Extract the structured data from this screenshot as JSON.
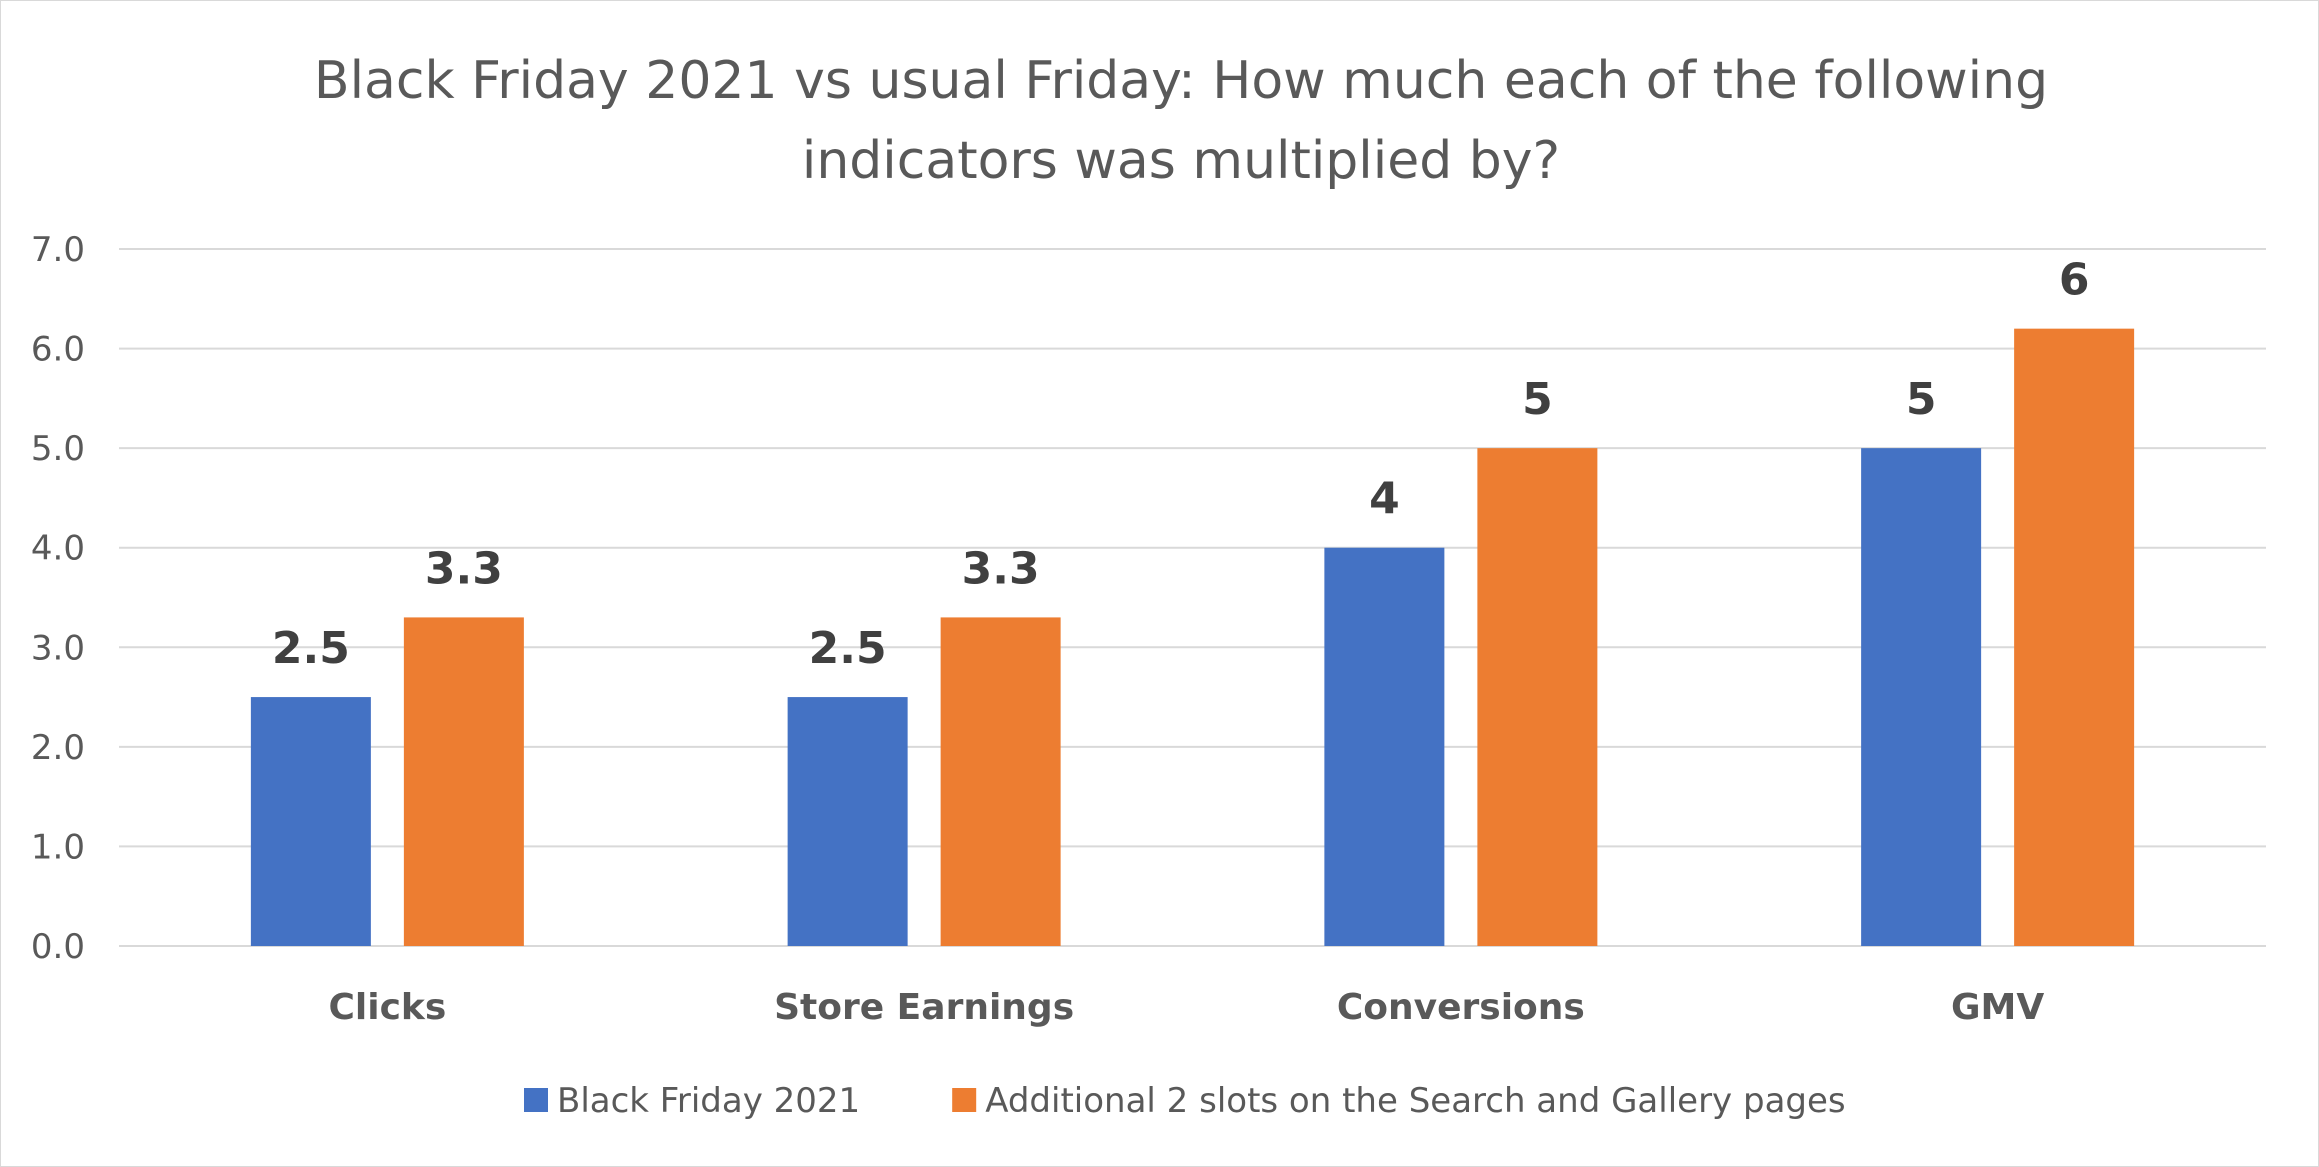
{
  "chart_data": {
    "type": "bar",
    "title": "Black Friday 2021 vs usual Friday: How much each of the following indicators was multiplied by?",
    "title_lines": [
      "Black Friday 2021 vs usual Friday: How much each of the following",
      "indicators was multiplied by?"
    ],
    "xlabel": "",
    "ylabel": "",
    "categories": [
      "Clicks",
      "Store Earnings",
      "Conversions",
      "GMV"
    ],
    "series": [
      {
        "name": "Black Friday 2021",
        "values": [
          2.5,
          2.5,
          4,
          5
        ],
        "labels": [
          "2.5",
          "2.5",
          "4",
          "5"
        ],
        "color": "#4472c4"
      },
      {
        "name": "Additional 2 slots on the Search and Gallery pages",
        "values": [
          3.3,
          3.3,
          5,
          6.2
        ],
        "labels": [
          "3.3",
          "3.3",
          "5",
          "6"
        ],
        "color": "#ed7d31"
      }
    ],
    "ylim": [
      0,
      7
    ],
    "yticks": [
      0,
      1,
      2,
      3,
      4,
      5,
      6,
      7
    ],
    "ytick_labels": [
      "0.0",
      "1.0",
      "2.0",
      "3.0",
      "4.0",
      "5.0",
      "6.0",
      "7.0"
    ],
    "grid": true,
    "legend_position": "bottom",
    "colors": {
      "gridline": "#d9d9d9",
      "text": "#595959",
      "data_label": "#404040"
    }
  }
}
